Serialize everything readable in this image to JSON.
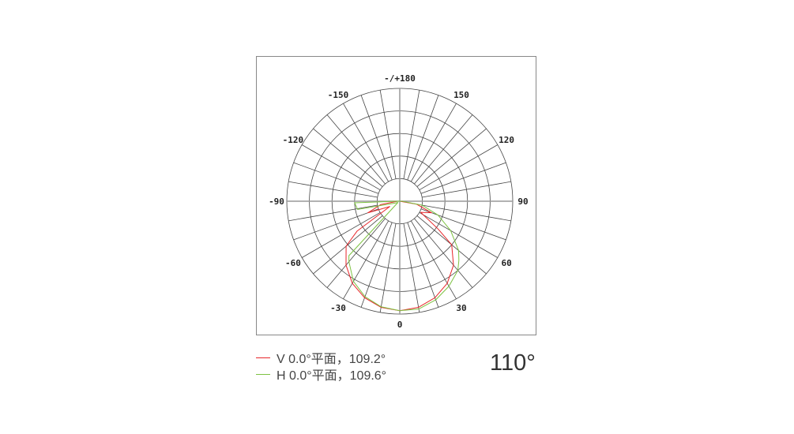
{
  "chart_data": {
    "type": "polar",
    "angle_tick_labels": [
      {
        "angle": 180,
        "label": "-/+180"
      },
      {
        "angle": 150,
        "label": "150"
      },
      {
        "angle": -150,
        "label": "-150"
      },
      {
        "angle": 120,
        "label": "120"
      },
      {
        "angle": -120,
        "label": "-120"
      },
      {
        "angle": 90,
        "label": "90"
      },
      {
        "angle": -90,
        "label": "-90"
      },
      {
        "angle": 60,
        "label": "60"
      },
      {
        "angle": -60,
        "label": "-60"
      },
      {
        "angle": 30,
        "label": "30"
      },
      {
        "angle": -30,
        "label": "-30"
      },
      {
        "angle": 0,
        "label": "0"
      }
    ],
    "spoke_step_deg": 10,
    "radial_rings": 5,
    "radial_max": 1,
    "grid": true,
    "legend_position": "bottom-left",
    "series": [
      {
        "name": "V 0.0°平面，109.2°",
        "color": "#e8262a",
        "angles": [
          -90,
          -80,
          -70,
          -62,
          -55,
          -50,
          -40,
          -30,
          -20,
          -10,
          0,
          10,
          20,
          30,
          40,
          50,
          54,
          62,
          70,
          80,
          90
        ],
        "values": [
          0.02,
          0.17,
          0.3,
          0.1,
          0.46,
          0.62,
          0.74,
          0.84,
          0.91,
          0.955,
          0.97,
          0.955,
          0.91,
          0.84,
          0.74,
          0.6,
          0.42,
          0.21,
          0.3,
          0.15,
          0.0
        ]
      },
      {
        "name": "H 0.0°平面，109.6°",
        "color": "#7dc242",
        "angles": [
          -90,
          -88,
          -79,
          -70,
          -55,
          -43,
          -40,
          -30,
          -20,
          -10,
          0,
          10,
          20,
          30,
          40,
          45,
          50,
          60,
          70,
          80,
          90
        ],
        "values": [
          0.02,
          0.4,
          0.38,
          0.05,
          0.02,
          0.66,
          0.7,
          0.82,
          0.9,
          0.95,
          0.97,
          0.97,
          0.93,
          0.87,
          0.8,
          0.74,
          0.68,
          0.52,
          0.36,
          0.2,
          0.02
        ]
      }
    ]
  },
  "legend": {
    "items": [
      {
        "label": "V 0.0°平面，109.2°",
        "color": "#e8262a"
      },
      {
        "label": "H 0.0°平面，109.6°",
        "color": "#7dc242"
      }
    ]
  },
  "beam_angle": "110°"
}
